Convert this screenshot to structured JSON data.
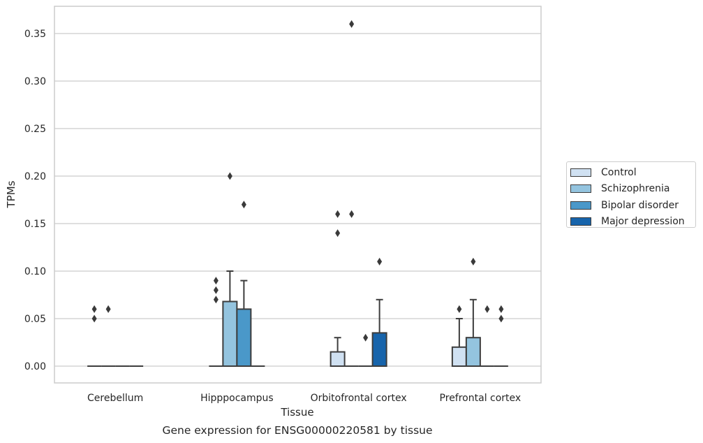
{
  "chart_data": {
    "type": "box",
    "title": "",
    "caption": "Gene expression for ENSG00000220581 by tissue",
    "xlabel": "Tissue",
    "ylabel": "TPMs",
    "categories": [
      "Cerebellum",
      "Hipppocampus",
      "Orbitofrontal cortex",
      "Prefrontal cortex"
    ],
    "ylim": [
      -0.018,
      0.378
    ],
    "yticks": [
      0.0,
      0.05,
      0.1,
      0.15,
      0.2,
      0.25,
      0.3,
      0.35
    ],
    "ytick_labels": [
      "0.00",
      "0.05",
      "0.10",
      "0.15",
      "0.20",
      "0.25",
      "0.30",
      "0.35"
    ],
    "grid": "horizontal",
    "legend_position": "right",
    "series": [
      {
        "name": "Control",
        "color": "#d0e1f2",
        "boxes": [
          {
            "q1": 0,
            "median": 0,
            "q3": 0,
            "whisker_low": 0,
            "whisker_high": 0,
            "outliers": [
              0.05,
              0.06
            ]
          },
          {
            "q1": 0,
            "median": 0,
            "q3": 0,
            "whisker_low": 0,
            "whisker_high": 0,
            "outliers": [
              0.07,
              0.08,
              0.09
            ]
          },
          {
            "q1": 0,
            "median": 0,
            "q3": 0.015,
            "whisker_low": 0,
            "whisker_high": 0.03,
            "outliers": [
              0.14,
              0.16
            ]
          },
          {
            "q1": 0,
            "median": 0,
            "q3": 0.02,
            "whisker_low": 0,
            "whisker_high": 0.05,
            "outliers": [
              0.06
            ]
          }
        ]
      },
      {
        "name": "Schizophrenia",
        "color": "#94c4df",
        "boxes": [
          {
            "q1": 0,
            "median": 0,
            "q3": 0,
            "whisker_low": 0,
            "whisker_high": 0,
            "outliers": [
              0.06
            ]
          },
          {
            "q1": 0,
            "median": 0,
            "q3": 0.068,
            "whisker_low": 0,
            "whisker_high": 0.1,
            "outliers": [
              0.2
            ]
          },
          {
            "q1": 0,
            "median": 0,
            "q3": 0,
            "whisker_low": 0,
            "whisker_high": 0,
            "outliers": [
              0.16,
              0.36
            ]
          },
          {
            "q1": 0,
            "median": 0,
            "q3": 0.03,
            "whisker_low": 0,
            "whisker_high": 0.07,
            "outliers": [
              0.11
            ]
          }
        ]
      },
      {
        "name": "Bipolar disorder",
        "color": "#4a98c9",
        "boxes": [
          {
            "q1": 0,
            "median": 0,
            "q3": 0,
            "whisker_low": 0,
            "whisker_high": 0,
            "outliers": []
          },
          {
            "q1": 0,
            "median": 0,
            "q3": 0.06,
            "whisker_low": 0,
            "whisker_high": 0.09,
            "outliers": [
              0.17
            ]
          },
          {
            "q1": 0,
            "median": 0,
            "q3": 0,
            "whisker_low": 0,
            "whisker_high": 0,
            "outliers": [
              0.03
            ]
          },
          {
            "q1": 0,
            "median": 0,
            "q3": 0,
            "whisker_low": 0,
            "whisker_high": 0,
            "outliers": [
              0.06
            ]
          }
        ]
      },
      {
        "name": "Major depression",
        "color": "#1764ab",
        "boxes": [
          {
            "q1": 0,
            "median": 0,
            "q3": 0,
            "whisker_low": 0,
            "whisker_high": 0,
            "outliers": []
          },
          {
            "q1": 0,
            "median": 0,
            "q3": 0,
            "whisker_low": 0,
            "whisker_high": 0,
            "outliers": []
          },
          {
            "q1": 0,
            "median": 0,
            "q3": 0.035,
            "whisker_low": 0,
            "whisker_high": 0.07,
            "outliers": [
              0.11
            ]
          },
          {
            "q1": 0,
            "median": 0,
            "q3": 0,
            "whisker_low": 0,
            "whisker_high": 0,
            "outliers": [
              0.05,
              0.06
            ]
          }
        ]
      }
    ]
  }
}
